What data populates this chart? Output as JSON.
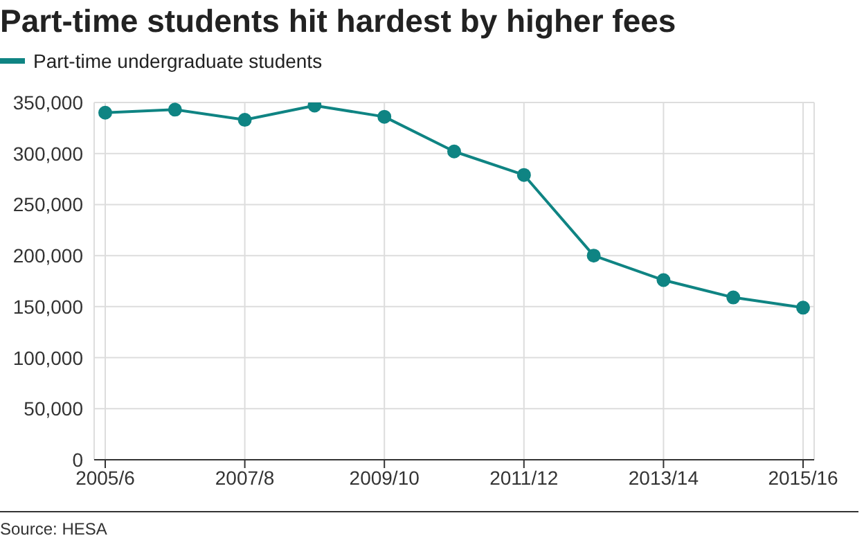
{
  "chart_data": {
    "type": "line",
    "title": "Part-time students hit hardest by higher fees",
    "categories": [
      "2005/6",
      null,
      "2007/8",
      null,
      "2009/10",
      null,
      "2011/12",
      null,
      "2013/14",
      null,
      "2015/16"
    ],
    "series": [
      {
        "name": "Part-time undergraduate students",
        "color": "#0f8483",
        "values": [
          340000,
          343000,
          333000,
          347000,
          336000,
          302000,
          279000,
          200000,
          176000,
          159000,
          149000
        ]
      }
    ],
    "ylim": [
      0,
      350000
    ],
    "yticks": [
      0,
      {
        "value": 50000,
        "label": "50,000"
      },
      {
        "value": 100000,
        "label": "100,000"
      },
      {
        "value": 150000,
        "label": "150,000"
      },
      {
        "value": 200000,
        "label": "200,000"
      },
      {
        "value": 250000,
        "label": "250,000"
      },
      {
        "value": 300000,
        "label": "300,000"
      },
      {
        "value": 350000,
        "label": "350,000"
      }
    ],
    "grid": true,
    "legend": "top left",
    "marker": "circle",
    "line_style": "solid",
    "annotations": [
      "Source: HESA"
    ]
  }
}
